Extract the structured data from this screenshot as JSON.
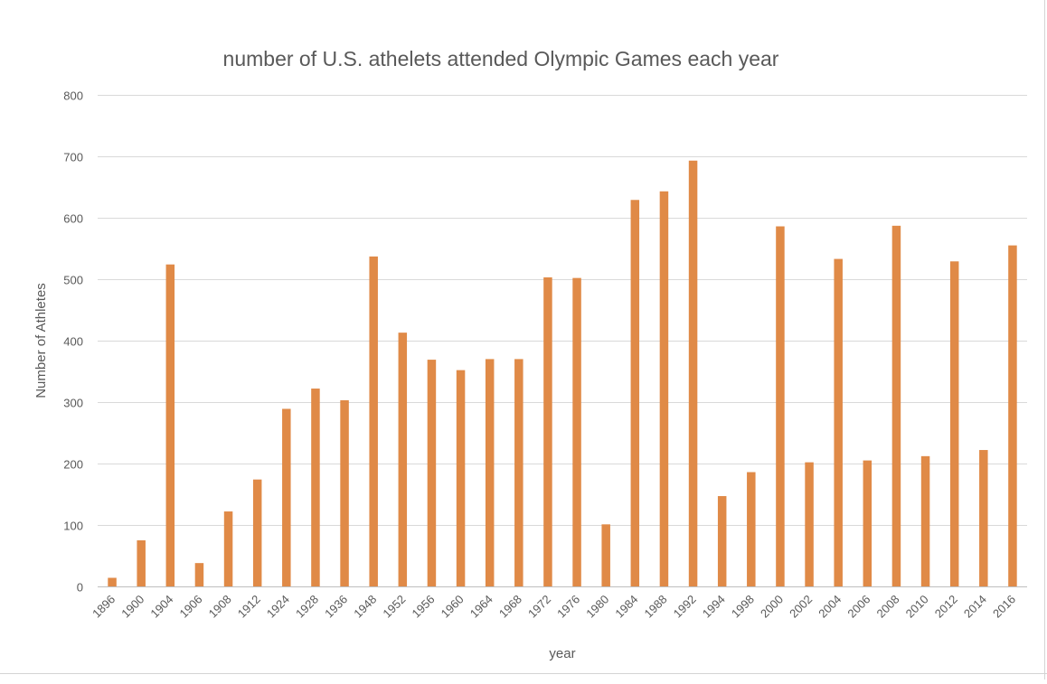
{
  "chart_data": {
    "type": "bar",
    "title": "number of U.S. athelets attended Olympic Games each year",
    "xlabel": "year",
    "ylabel": "Number of Athletes",
    "ylim": [
      0,
      800
    ],
    "yticks": [
      0,
      100,
      200,
      300,
      400,
      500,
      600,
      700,
      800
    ],
    "grid": true,
    "legend": "none",
    "bar_color": "#E08A47",
    "categories": [
      "1896",
      "1900",
      "1904",
      "1906",
      "1908",
      "1912",
      "1924",
      "1928",
      "1936",
      "1948",
      "1952",
      "1956",
      "1960",
      "1964",
      "1968",
      "1972",
      "1976",
      "1980",
      "1984",
      "1988",
      "1992",
      "1994",
      "1998",
      "2000",
      "2002",
      "2004",
      "2006",
      "2008",
      "2010",
      "2012",
      "2014",
      "2016"
    ],
    "values": [
      14,
      75,
      524,
      38,
      122,
      174,
      289,
      322,
      303,
      537,
      413,
      369,
      352,
      370,
      370,
      503,
      502,
      101,
      629,
      643,
      693,
      147,
      186,
      586,
      202,
      533,
      205,
      587,
      212,
      529,
      222,
      555
    ]
  }
}
